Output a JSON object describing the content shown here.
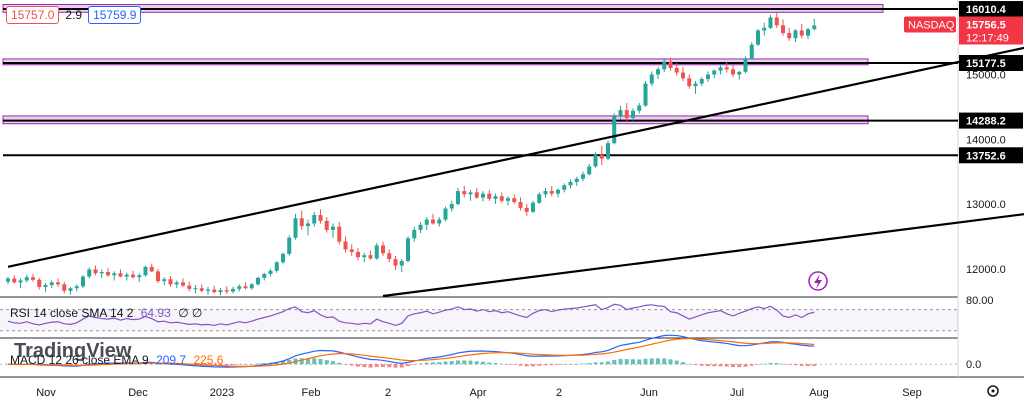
{
  "header": {
    "bid": "15757.0",
    "spread": "2.9",
    "ask": "15759.9"
  },
  "colors": {
    "up": "#26a69a",
    "down": "#ef5350",
    "zone_fill": "#e1bee7",
    "zone_stroke": "#9c27b0",
    "symbol_badge": "#f23645",
    "rsi": "#7e57c2",
    "macd": "#2962ff",
    "signal": "#ff6d00",
    "axis_text": "#131722"
  },
  "chart_data": {
    "type": "candlestick",
    "symbol": "NASDAQ",
    "last_price": "15756.5",
    "countdown": "12:17:49",
    "y_range": [
      11580,
      16150
    ],
    "y_ticks": [
      12000,
      13000,
      14000,
      15000
    ],
    "y_tick_labels": [
      "12000.0",
      "13000.0",
      "14000.0",
      "15000.0"
    ],
    "x_tick_labels": [
      "Nov",
      "Dec",
      "2023",
      "Feb",
      "2",
      "Apr",
      "2",
      "Jun",
      "Jul",
      "Aug",
      "Sep"
    ],
    "level_labels": [
      "16010.4",
      "15177.5",
      "14288.2",
      "13752.6"
    ],
    "levels": [
      {
        "price": 16010.4,
        "zone": [
          15960,
          16080
        ],
        "style": "zone"
      },
      {
        "price": 15177.5,
        "zone": [
          15150,
          15240
        ],
        "style": "zone"
      },
      {
        "price": 14288.2,
        "zone": [
          14240,
          14360
        ],
        "style": "zone"
      },
      {
        "price": 13752.6,
        "style": "line"
      }
    ],
    "trendlines": [
      {
        "from": [
          0,
          12030
        ],
        "to": [
          200,
          16190
        ]
      },
      {
        "from": [
          60,
          11580
        ],
        "to": [
          280,
          14290
        ]
      }
    ],
    "candles": [
      [
        11800,
        11880,
        11760,
        11850
      ],
      [
        11850,
        11900,
        11770,
        11790
      ],
      [
        11790,
        11850,
        11700,
        11820
      ],
      [
        11820,
        11910,
        11790,
        11870
      ],
      [
        11870,
        11920,
        11800,
        11830
      ],
      [
        11830,
        11860,
        11680,
        11720
      ],
      [
        11720,
        11780,
        11640,
        11750
      ],
      [
        11750,
        11820,
        11700,
        11790
      ],
      [
        11790,
        11850,
        11720,
        11760
      ],
      [
        11760,
        11800,
        11620,
        11660
      ],
      [
        11660,
        11720,
        11600,
        11700
      ],
      [
        11700,
        11760,
        11650,
        11730
      ],
      [
        11730,
        11900,
        11700,
        11880
      ],
      [
        11880,
        12020,
        11850,
        11990
      ],
      [
        11990,
        12050,
        11900,
        11930
      ],
      [
        11930,
        11990,
        11860,
        11950
      ],
      [
        11950,
        12010,
        11880,
        11900
      ],
      [
        11900,
        11960,
        11820,
        11930
      ],
      [
        11930,
        11990,
        11870,
        11880
      ],
      [
        11880,
        11940,
        11820,
        11910
      ],
      [
        11910,
        11970,
        11850,
        11870
      ],
      [
        11870,
        11930,
        11800,
        11900
      ],
      [
        11900,
        12050,
        11880,
        12030
      ],
      [
        12030,
        12080,
        11950,
        11960
      ],
      [
        11960,
        12000,
        11780,
        11810
      ],
      [
        11810,
        11870,
        11750,
        11840
      ],
      [
        11840,
        11890,
        11720,
        11760
      ],
      [
        11760,
        11820,
        11700,
        11790
      ],
      [
        11790,
        11850,
        11720,
        11740
      ],
      [
        11740,
        11800,
        11650,
        11690
      ],
      [
        11690,
        11750,
        11620,
        11700
      ],
      [
        11700,
        11760,
        11640,
        11660
      ],
      [
        11660,
        11720,
        11600,
        11680
      ],
      [
        11680,
        11740,
        11620,
        11640
      ],
      [
        11640,
        11700,
        11590,
        11670
      ],
      [
        11670,
        11730,
        11610,
        11650
      ],
      [
        11650,
        11720,
        11620,
        11690
      ],
      [
        11690,
        11760,
        11650,
        11730
      ],
      [
        11730,
        11790,
        11680,
        11700
      ],
      [
        11700,
        11780,
        11680,
        11760
      ],
      [
        11760,
        11880,
        11740,
        11860
      ],
      [
        11860,
        11940,
        11820,
        11920
      ],
      [
        11920,
        12000,
        11880,
        11970
      ],
      [
        11970,
        12120,
        11940,
        12100
      ],
      [
        12100,
        12250,
        12080,
        12230
      ],
      [
        12230,
        12520,
        12200,
        12480
      ],
      [
        12480,
        12850,
        12450,
        12780
      ],
      [
        12780,
        12900,
        12600,
        12660
      ],
      [
        12660,
        12760,
        12520,
        12700
      ],
      [
        12700,
        12880,
        12650,
        12830
      ],
      [
        12830,
        12920,
        12700,
        12740
      ],
      [
        12740,
        12800,
        12560,
        12600
      ],
      [
        12600,
        12700,
        12480,
        12650
      ],
      [
        12650,
        12720,
        12380,
        12420
      ],
      [
        12420,
        12500,
        12250,
        12300
      ],
      [
        12300,
        12380,
        12200,
        12260
      ],
      [
        12260,
        12320,
        12130,
        12180
      ],
      [
        12180,
        12250,
        12100,
        12210
      ],
      [
        12210,
        12280,
        12140,
        12160
      ],
      [
        12160,
        12400,
        12140,
        12360
      ],
      [
        12360,
        12420,
        12200,
        12240
      ],
      [
        12240,
        12300,
        12100,
        12150
      ],
      [
        12150,
        12200,
        11980,
        12050
      ],
      [
        12050,
        12150,
        11950,
        12120
      ],
      [
        12120,
        12500,
        12100,
        12470
      ],
      [
        12470,
        12650,
        12420,
        12600
      ],
      [
        12600,
        12720,
        12550,
        12680
      ],
      [
        12680,
        12800,
        12600,
        12760
      ],
      [
        12760,
        12850,
        12680,
        12700
      ],
      [
        12700,
        12800,
        12650,
        12760
      ],
      [
        12760,
        12960,
        12730,
        12930
      ],
      [
        12930,
        13050,
        12880,
        13000
      ],
      [
        13000,
        13250,
        12980,
        13200
      ],
      [
        13200,
        13280,
        13100,
        13150
      ],
      [
        13150,
        13220,
        13050,
        13180
      ],
      [
        13180,
        13250,
        13080,
        13100
      ],
      [
        13100,
        13200,
        13040,
        13160
      ],
      [
        13160,
        13220,
        13050,
        13080
      ],
      [
        13080,
        13160,
        13000,
        13120
      ],
      [
        13120,
        13180,
        13020,
        13050
      ],
      [
        13050,
        13120,
        12980,
        13090
      ],
      [
        13090,
        13150,
        13000,
        13030
      ],
      [
        13030,
        13100,
        12900,
        12940
      ],
      [
        12940,
        13000,
        12820,
        12880
      ],
      [
        12880,
        13050,
        12860,
        13020
      ],
      [
        13020,
        13180,
        13000,
        13150
      ],
      [
        13150,
        13250,
        13100,
        13200
      ],
      [
        13200,
        13280,
        13120,
        13160
      ],
      [
        13160,
        13240,
        13100,
        13220
      ],
      [
        13220,
        13320,
        13180,
        13290
      ],
      [
        13290,
        13380,
        13240,
        13340
      ],
      [
        13340,
        13420,
        13280,
        13390
      ],
      [
        13390,
        13500,
        13350,
        13460
      ],
      [
        13460,
        13620,
        13440,
        13580
      ],
      [
        13580,
        13800,
        13560,
        13760
      ],
      [
        13760,
        13900,
        13600,
        13700
      ],
      [
        13700,
        13980,
        13680,
        13940
      ],
      [
        13940,
        14400,
        13920,
        14350
      ],
      [
        14350,
        14520,
        14300,
        14450
      ],
      [
        14450,
        14560,
        14280,
        14330
      ],
      [
        14330,
        14480,
        14290,
        14440
      ],
      [
        14440,
        14560,
        14400,
        14520
      ],
      [
        14520,
        14900,
        14500,
        14860
      ],
      [
        14860,
        15050,
        14820,
        15000
      ],
      [
        15000,
        15120,
        14930,
        15080
      ],
      [
        15080,
        15250,
        15040,
        15200
      ],
      [
        15200,
        15260,
        15060,
        15100
      ],
      [
        15100,
        15180,
        14980,
        15030
      ],
      [
        15030,
        15120,
        14900,
        14940
      ],
      [
        14940,
        15000,
        14780,
        14820
      ],
      [
        14820,
        14900,
        14700,
        14860
      ],
      [
        14860,
        14960,
        14820,
        14930
      ],
      [
        14930,
        15050,
        14880,
        15000
      ],
      [
        15000,
        15080,
        14940,
        15060
      ],
      [
        15060,
        15150,
        15000,
        15110
      ],
      [
        15110,
        15200,
        15030,
        15080
      ],
      [
        15080,
        15150,
        14960,
        15000
      ],
      [
        15000,
        15060,
        14920,
        15040
      ],
      [
        15040,
        15280,
        15020,
        15250
      ],
      [
        15250,
        15500,
        15230,
        15460
      ],
      [
        15460,
        15700,
        15440,
        15680
      ],
      [
        15680,
        15800,
        15600,
        15720
      ],
      [
        15720,
        15920,
        15700,
        15880
      ],
      [
        15880,
        15960,
        15720,
        15760
      ],
      [
        15760,
        15850,
        15600,
        15640
      ],
      [
        15640,
        15720,
        15520,
        15560
      ],
      [
        15560,
        15700,
        15500,
        15680
      ],
      [
        15680,
        15780,
        15560,
        15600
      ],
      [
        15600,
        15720,
        15550,
        15700
      ],
      [
        15700,
        15860,
        15680,
        15756.5
      ]
    ],
    "rsi": {
      "label": "RSI 14 close SMA 14 2",
      "value": "64.93",
      "extra": "∅ ∅",
      "band_label": "80.00",
      "values": [
        48,
        45,
        44,
        47,
        43,
        41,
        44,
        46,
        47,
        43,
        42,
        45,
        52,
        58,
        55,
        53,
        52,
        54,
        50,
        53,
        51,
        52,
        57,
        53,
        47,
        48,
        45,
        46,
        44,
        42,
        43,
        41,
        42,
        40,
        43,
        41,
        44,
        47,
        45,
        48,
        52,
        55,
        58,
        62,
        66,
        72,
        75,
        66,
        64,
        68,
        60,
        55,
        56,
        48,
        45,
        44,
        42,
        44,
        43,
        52,
        47,
        44,
        40,
        44,
        58,
        62,
        64,
        67,
        62,
        65,
        69,
        71,
        75,
        70,
        71,
        67,
        70,
        66,
        68,
        64,
        66,
        62,
        58,
        55,
        63,
        68,
        70,
        66,
        69,
        71,
        72,
        73,
        75,
        77,
        79,
        70,
        74,
        80,
        78,
        70,
        73,
        75,
        78,
        79,
        77,
        76,
        66,
        64,
        58,
        52,
        56,
        60,
        64,
        66,
        68,
        62,
        58,
        63,
        67,
        72,
        75,
        72,
        76,
        69,
        58,
        55,
        60,
        55,
        62,
        64.93
      ]
    },
    "macd": {
      "label": "MACD 12 26 close EMA 9",
      "value1": "209.7",
      "value2": "225.6",
      "zero_label": "0.0",
      "range": [
        -200,
        450
      ]
    },
    "watermark": "TradingView"
  }
}
